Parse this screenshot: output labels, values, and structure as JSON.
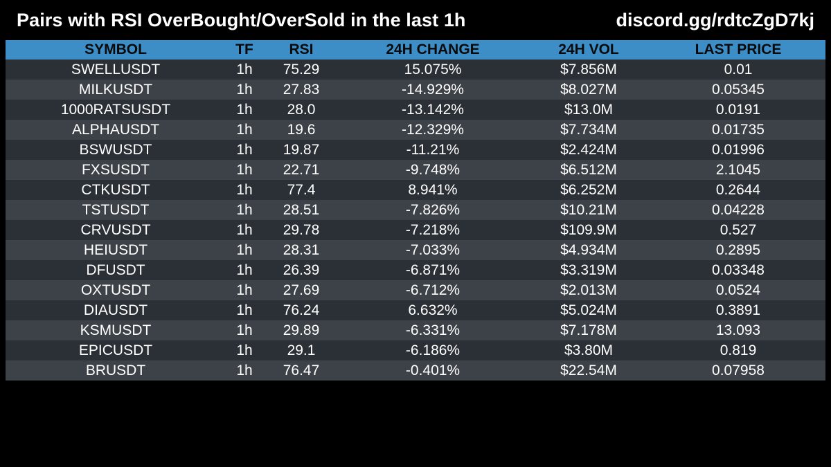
{
  "header": {
    "title": "Pairs with RSI OverBought/OverSold in the last 1h",
    "discord": "discord.gg/rdtcZgD7kj"
  },
  "colors": {
    "background": "#000000",
    "header_row": "#3d8ec7",
    "row_odd": "#2b3036",
    "row_even": "#3d4248",
    "text": "#ffffff"
  },
  "chart_data": {
    "type": "table",
    "columns": [
      "SYMBOL",
      "TF",
      "RSI",
      "24H CHANGE",
      "24H VOL",
      "LAST PRICE"
    ],
    "rows": [
      [
        "SWELLUSDT",
        "1h",
        "75.29",
        "15.075%",
        "$7.856M",
        "0.01"
      ],
      [
        "MILKUSDT",
        "1h",
        "27.83",
        "-14.929%",
        "$8.027M",
        "0.05345"
      ],
      [
        "1000RATSUSDT",
        "1h",
        "28.0",
        "-13.142%",
        "$13.0M",
        "0.0191"
      ],
      [
        "ALPHAUSDT",
        "1h",
        "19.6",
        "-12.329%",
        "$7.734M",
        "0.01735"
      ],
      [
        "BSWUSDT",
        "1h",
        "19.87",
        "-11.21%",
        "$2.424M",
        "0.01996"
      ],
      [
        "FXSUSDT",
        "1h",
        "22.71",
        "-9.748%",
        "$6.512M",
        "2.1045"
      ],
      [
        "CTKUSDT",
        "1h",
        "77.4",
        "8.941%",
        "$6.252M",
        "0.2644"
      ],
      [
        "TSTUSDT",
        "1h",
        "28.51",
        "-7.826%",
        "$10.21M",
        "0.04228"
      ],
      [
        "CRVUSDT",
        "1h",
        "29.78",
        "-7.218%",
        "$109.9M",
        "0.527"
      ],
      [
        "HEIUSDT",
        "1h",
        "28.31",
        "-7.033%",
        "$4.934M",
        "0.2895"
      ],
      [
        "DFUSDT",
        "1h",
        "26.39",
        "-6.871%",
        "$3.319M",
        "0.03348"
      ],
      [
        "OXTUSDT",
        "1h",
        "27.69",
        "-6.712%",
        "$2.013M",
        "0.0524"
      ],
      [
        "DIAUSDT",
        "1h",
        "76.24",
        "6.632%",
        "$5.024M",
        "0.3891"
      ],
      [
        "KSMUSDT",
        "1h",
        "29.89",
        "-6.331%",
        "$7.178M",
        "13.093"
      ],
      [
        "EPICUSDT",
        "1h",
        "29.1",
        "-6.186%",
        "$3.80M",
        "0.819"
      ],
      [
        "BRUSDT",
        "1h",
        "76.47",
        "-0.401%",
        "$22.54M",
        "0.07958"
      ]
    ]
  }
}
